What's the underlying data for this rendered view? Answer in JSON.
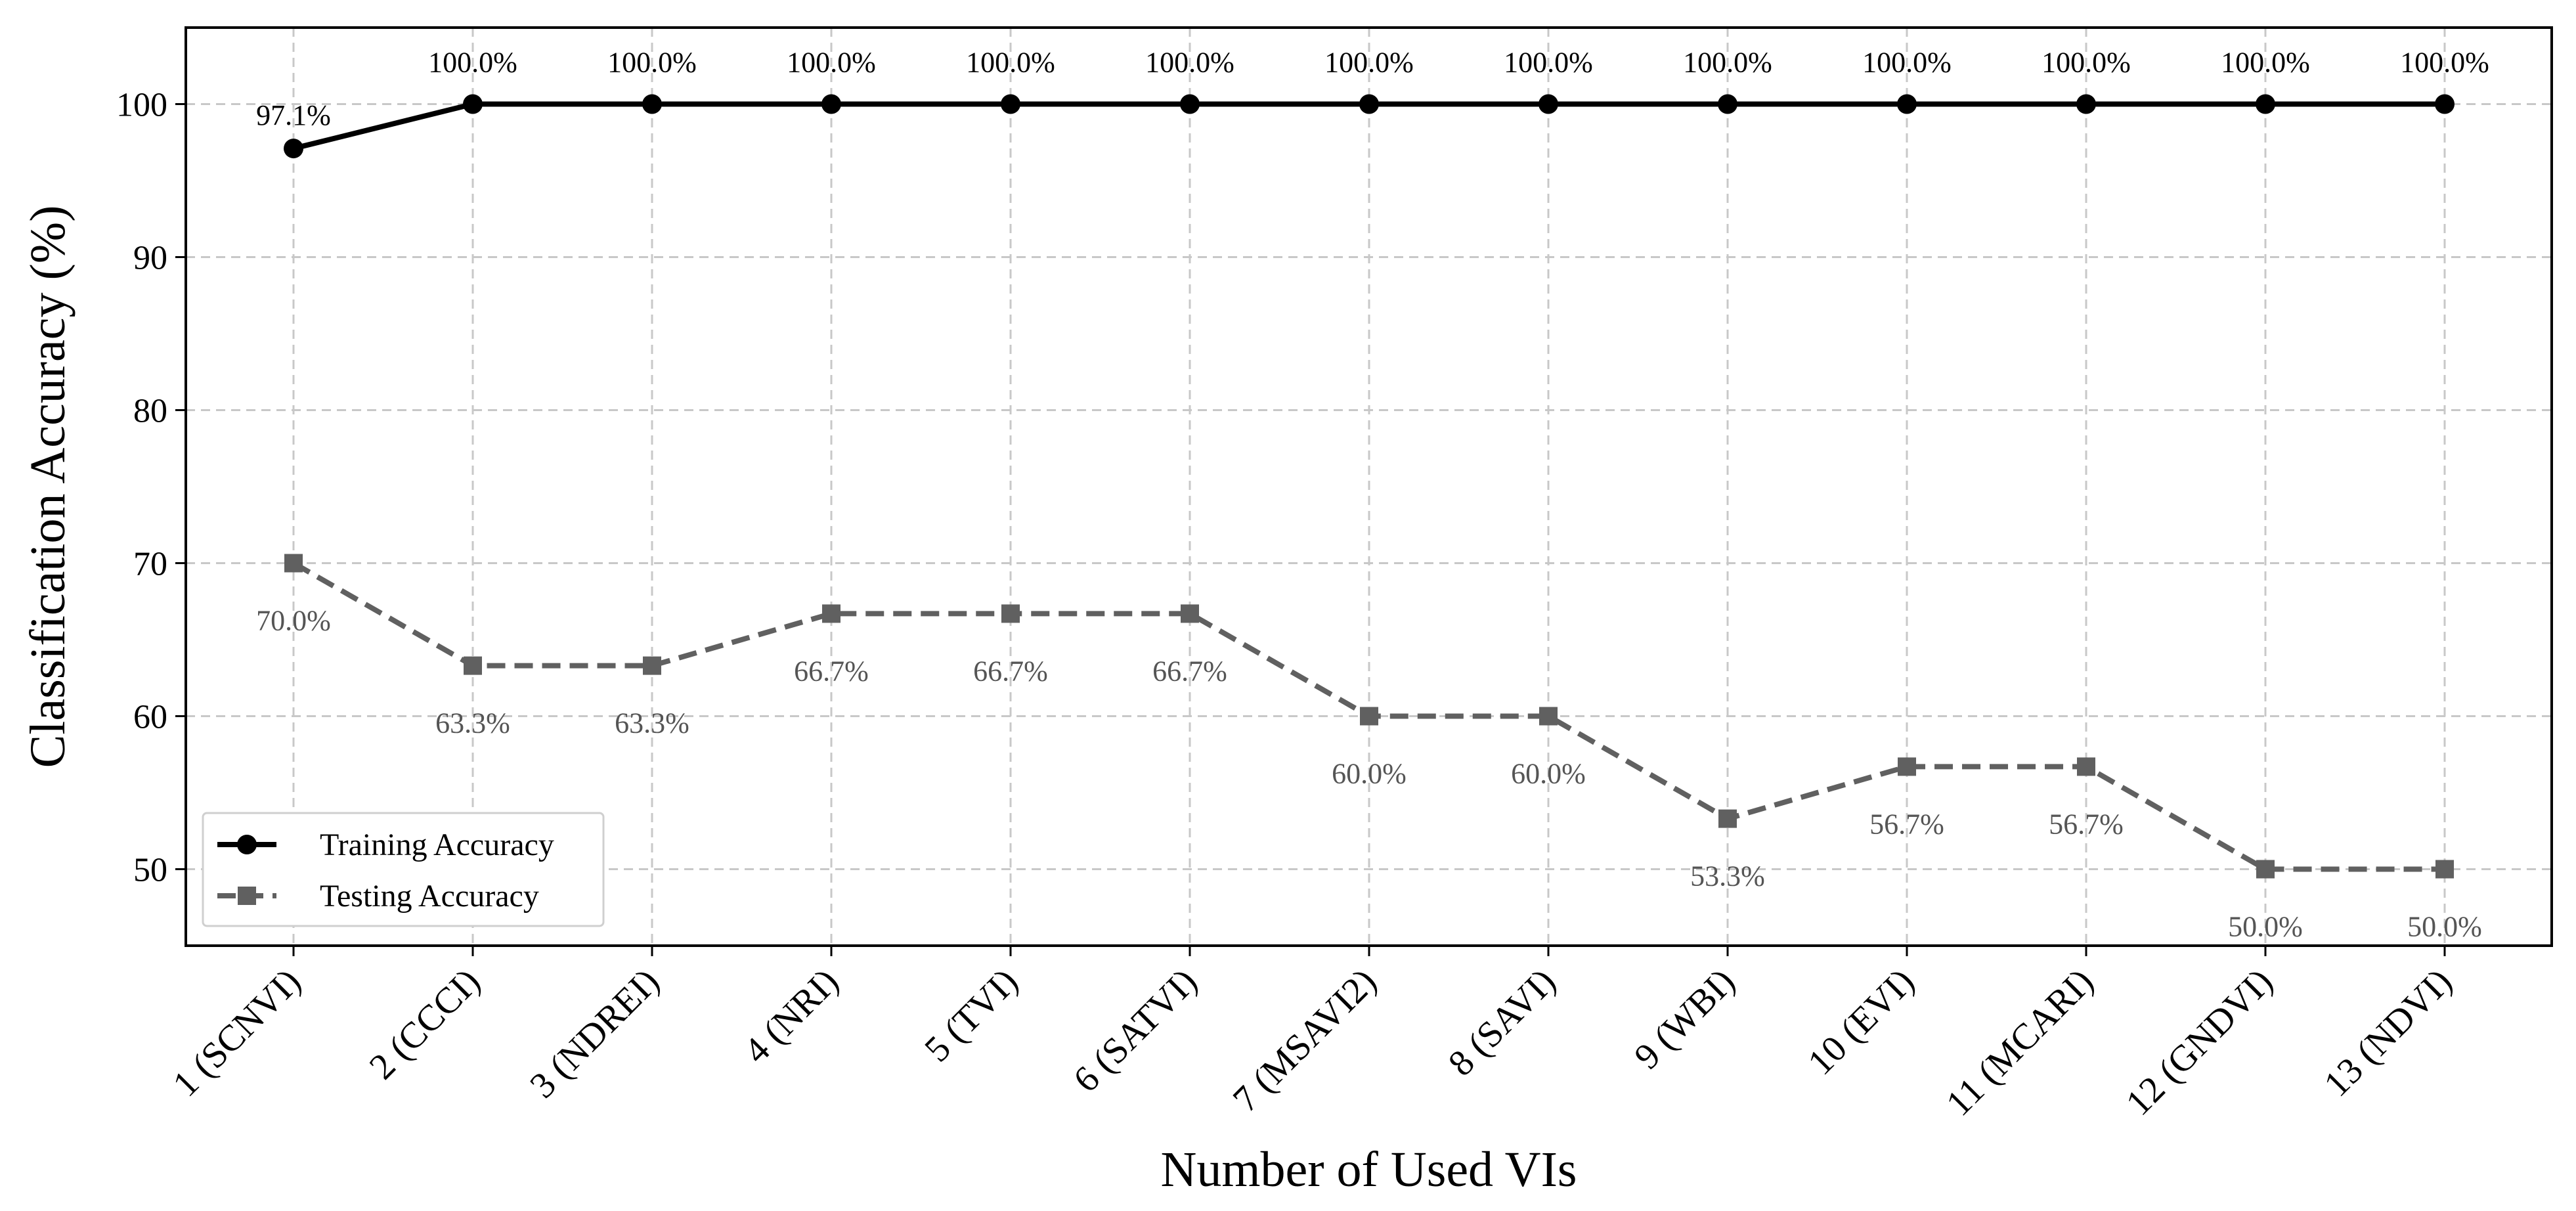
{
  "chart_data": {
    "type": "line",
    "xlabel": "Number of Used VIs",
    "ylabel": "Classification Accuracy (%)",
    "categories": [
      "1 (SCNVI)",
      "2 (CCCI)",
      "3 (NDREI)",
      "4 (NRI)",
      "5 (TVI)",
      "6 (SATVI)",
      "7 (MSAVI2)",
      "8 (SAVI)",
      "9 (WBI)",
      "10 (EVI)",
      "11 (MCARI)",
      "12 (GNDVI)",
      "13 (NDVI)"
    ],
    "ylim": [
      45,
      105
    ],
    "yticks": [
      50,
      60,
      70,
      80,
      90,
      100
    ],
    "grid": true,
    "legend_position": "lower-left",
    "series": [
      {
        "name": "Training Accuracy",
        "color": "#000000",
        "marker": "circle",
        "linestyle": "solid",
        "values": [
          97.1,
          100.0,
          100.0,
          100.0,
          100.0,
          100.0,
          100.0,
          100.0,
          100.0,
          100.0,
          100.0,
          100.0,
          100.0
        ],
        "labels": [
          "97.1%",
          "100.0%",
          "100.0%",
          "100.0%",
          "100.0%",
          "100.0%",
          "100.0%",
          "100.0%",
          "100.0%",
          "100.0%",
          "100.0%",
          "100.0%",
          "100.0%"
        ]
      },
      {
        "name": "Testing Accuracy",
        "color": "#606060",
        "marker": "square",
        "linestyle": "dashed",
        "values": [
          70.0,
          63.3,
          63.3,
          66.7,
          66.7,
          66.7,
          60.0,
          60.0,
          53.3,
          56.7,
          56.7,
          50.0,
          50.0
        ],
        "labels": [
          "70.0%",
          "63.3%",
          "63.3%",
          "66.7%",
          "66.7%",
          "66.7%",
          "60.0%",
          "60.0%",
          "53.3%",
          "56.7%",
          "56.7%",
          "50.0%",
          "50.0%"
        ]
      }
    ]
  }
}
